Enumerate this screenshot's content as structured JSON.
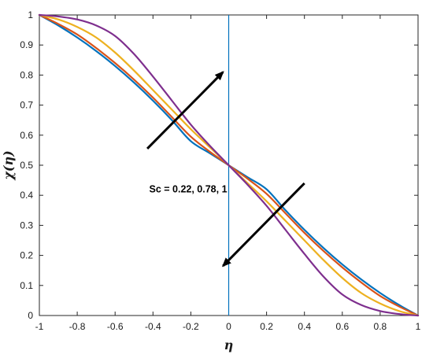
{
  "chart_data": {
    "type": "line",
    "title": "",
    "xlabel": "η",
    "ylabel": "χ(η)",
    "xlim": [
      -1,
      1
    ],
    "ylim": [
      0,
      1
    ],
    "xticks": [
      -1,
      -0.8,
      -0.6,
      -0.4,
      -0.2,
      0,
      0.2,
      0.4,
      0.6,
      0.8,
      1
    ],
    "yticks": [
      0,
      0.1,
      0.2,
      0.3,
      0.4,
      0.5,
      0.6,
      0.7,
      0.8,
      0.9,
      1
    ],
    "xtick_labels": [
      "-1",
      "-0.8",
      "-0.6",
      "-0.4",
      "-0.2",
      "0",
      "0.2",
      "0.4",
      "0.6",
      "0.8",
      "1"
    ],
    "ytick_labels": [
      "0",
      "0.1",
      "0.2",
      "0.3",
      "0.4",
      "0.5",
      "0.6",
      "0.7",
      "0.8",
      "0.9",
      "1"
    ],
    "grid": false,
    "x": [
      -1,
      -0.9,
      -0.8,
      -0.7,
      -0.6,
      -0.5,
      -0.4,
      -0.3,
      -0.2,
      -0.1,
      0,
      0.1,
      0.2,
      0.3,
      0.4,
      0.5,
      0.6,
      0.7,
      0.8,
      0.9,
      1
    ],
    "series": [
      {
        "color": "#0072bd",
        "values": [
          1,
          0.965,
          0.925,
          0.88,
          0.83,
          0.775,
          0.715,
          0.65,
          0.58,
          0.54,
          0.5,
          0.46,
          0.42,
          0.35,
          0.285,
          0.225,
          0.17,
          0.12,
          0.075,
          0.035,
          0
        ]
      },
      {
        "color": "#d95319",
        "values": [
          1,
          0.97,
          0.935,
          0.89,
          0.84,
          0.785,
          0.725,
          0.66,
          0.595,
          0.545,
          0.5,
          0.455,
          0.405,
          0.34,
          0.275,
          0.215,
          0.16,
          0.11,
          0.065,
          0.03,
          0
        ]
      },
      {
        "color": "#edb120",
        "values": [
          1,
          0.985,
          0.96,
          0.925,
          0.875,
          0.815,
          0.75,
          0.685,
          0.62,
          0.56,
          0.5,
          0.44,
          0.38,
          0.315,
          0.25,
          0.185,
          0.125,
          0.075,
          0.04,
          0.015,
          0
        ]
      },
      {
        "color": "#7e2f8e",
        "values": [
          1,
          0.995,
          0.985,
          0.965,
          0.93,
          0.87,
          0.795,
          0.715,
          0.635,
          0.565,
          0.5,
          0.435,
          0.365,
          0.285,
          0.205,
          0.13,
          0.07,
          0.035,
          0.015,
          0.005,
          0
        ]
      }
    ],
    "reference_line": {
      "x": 0,
      "color": "#0072bd"
    },
    "annotations": [
      {
        "text": "Sc = 0.22, 0.78, 1",
        "x": -0.42,
        "y": 0.41
      }
    ],
    "arrows": [
      {
        "from": [
          -0.43,
          0.555
        ],
        "to": [
          -0.03,
          0.81
        ],
        "color": "#000000"
      },
      {
        "from": [
          0.4,
          0.44
        ],
        "to": [
          -0.03,
          0.165
        ],
        "color": "#000000"
      }
    ]
  }
}
